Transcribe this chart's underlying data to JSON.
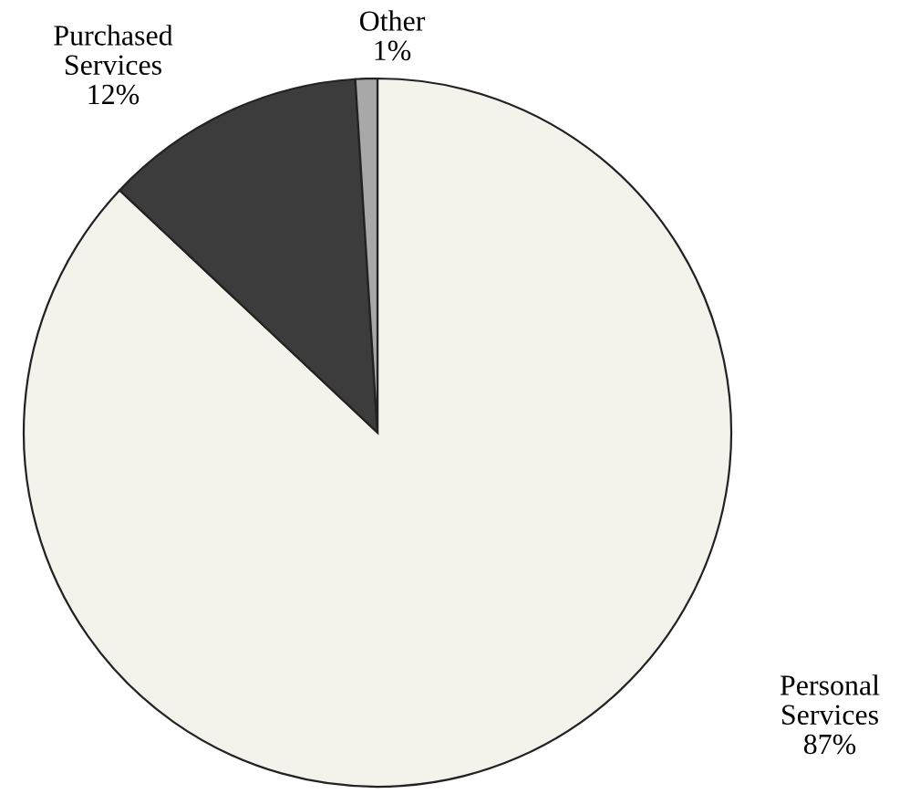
{
  "chart_data": {
    "type": "pie",
    "categories": [
      "Personal Services",
      "Purchased Services",
      "Other"
    ],
    "values": [
      87,
      12,
      1
    ],
    "value_labels": [
      "87%",
      "12%",
      "1%"
    ],
    "colors": [
      "#f3f3ec",
      "#3c3c3c",
      "#a8a8a8"
    ]
  }
}
